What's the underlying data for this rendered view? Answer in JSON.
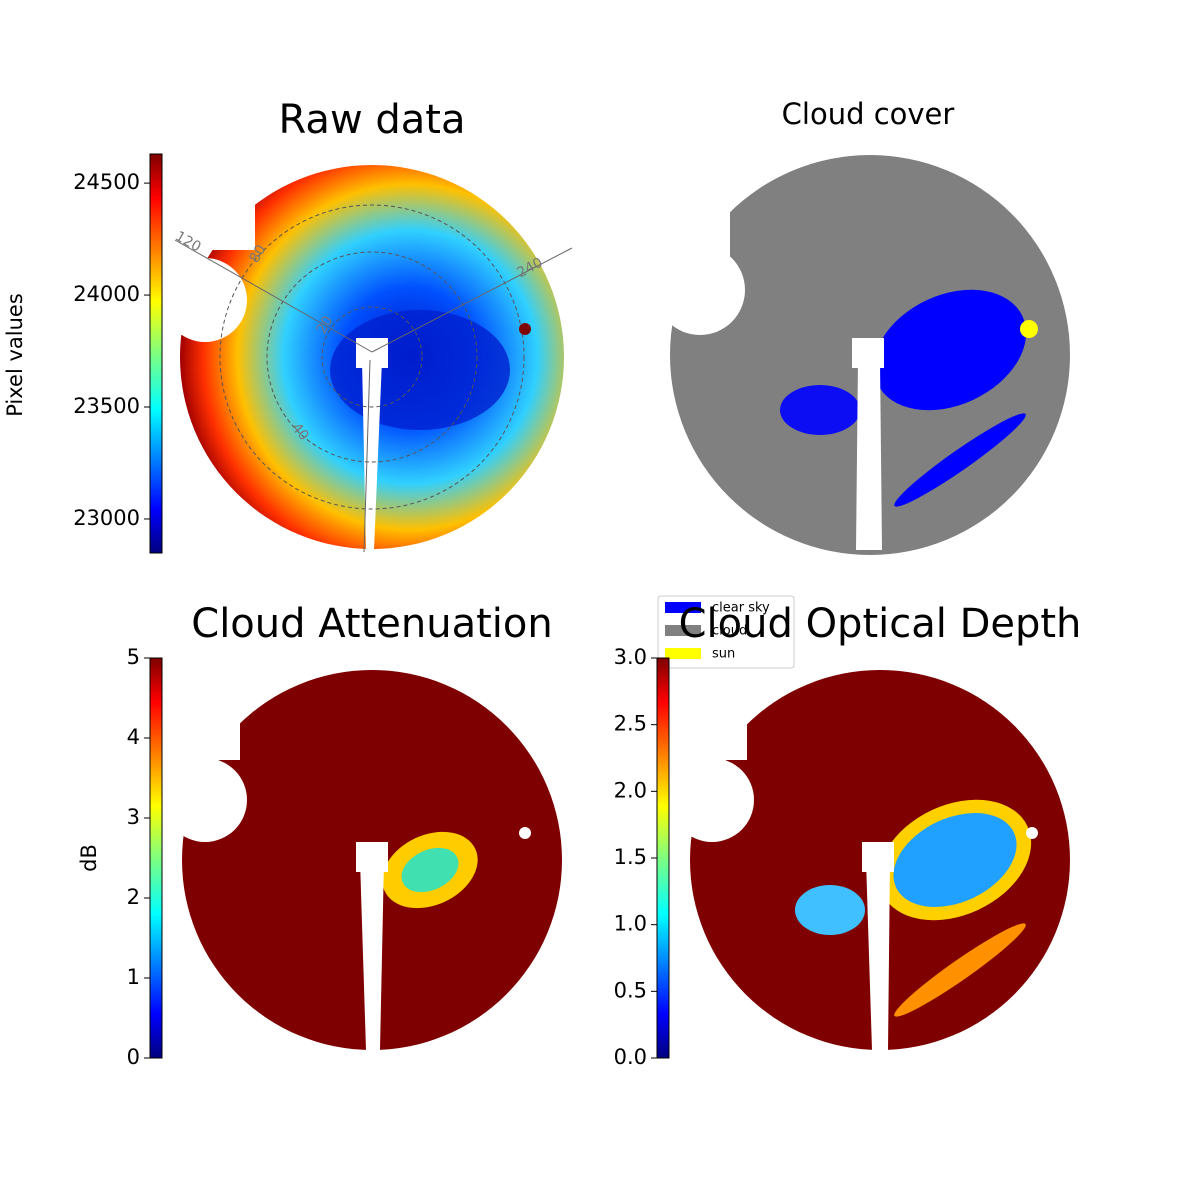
{
  "chart_data": [
    {
      "type": "heatmap",
      "title": "Raw data",
      "colorbar_label": "Pixel values",
      "colormap": "jet",
      "clim": [
        22848,
        24630
      ],
      "cticks": [
        23000,
        23500,
        24000,
        24500
      ],
      "annotations": [
        "120",
        "240",
        "80",
        "20",
        "40"
      ]
    },
    {
      "type": "categorical",
      "title": "Cloud cover",
      "series": [
        {
          "name": "clear sky",
          "color": "#0000ff"
        },
        {
          "name": "cloud",
          "color": "#808080"
        },
        {
          "name": "sun",
          "color": "#ffff00"
        }
      ]
    },
    {
      "type": "heatmap",
      "title": "Cloud Attenuation",
      "colorbar_label": "dB",
      "colormap": "jet",
      "clim": [
        0,
        5
      ],
      "cticks": [
        0,
        1,
        2,
        3,
        4,
        5
      ]
    },
    {
      "type": "heatmap",
      "title": "Cloud Optical Depth",
      "colormap": "jet",
      "clim": [
        0,
        3
      ],
      "cticks": [
        {
          "value": 0,
          "label": "0.0"
        },
        {
          "value": 0.5,
          "label": "0.5"
        },
        {
          "value": 1,
          "label": "1.0"
        },
        {
          "value": 1.5,
          "label": "1.5"
        },
        {
          "value": 2,
          "label": "2.0"
        },
        {
          "value": 2.5,
          "label": "2.5"
        },
        {
          "value": 3,
          "label": "3.0"
        }
      ]
    }
  ]
}
